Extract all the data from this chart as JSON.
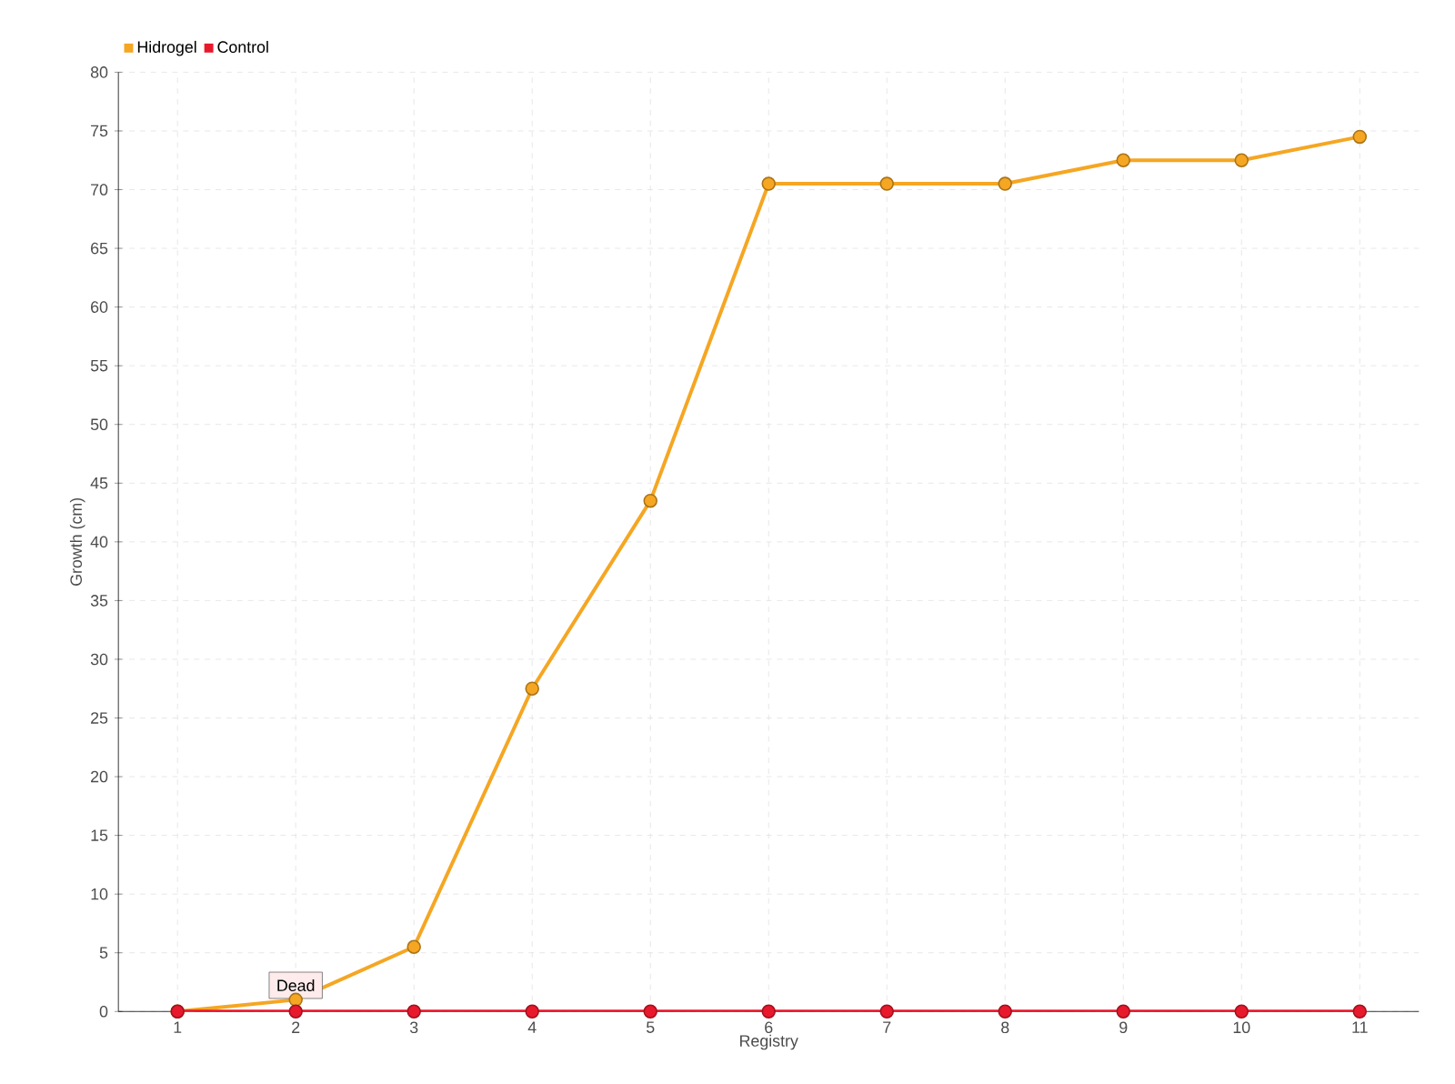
{
  "chart_data": {
    "type": "line",
    "xlabel": "Registry",
    "ylabel": "Growth (cm)",
    "categories": [
      "1",
      "2",
      "3",
      "4",
      "5",
      "6",
      "7",
      "8",
      "9",
      "10",
      "11"
    ],
    "series": [
      {
        "name": "Hidrogel",
        "color": "#f5a623",
        "values": [
          0,
          1,
          5.5,
          27.5,
          43.5,
          70.5,
          70.5,
          70.5,
          72.5,
          72.5,
          74.5
        ]
      },
      {
        "name": "Control",
        "color": "#e8192c",
        "values": [
          0,
          0,
          0,
          0,
          0,
          0,
          0,
          0,
          0,
          0,
          0
        ]
      }
    ],
    "ylim": [
      0,
      80
    ],
    "yticks": [
      0,
      5,
      10,
      15,
      20,
      25,
      30,
      35,
      40,
      45,
      50,
      55,
      60,
      65,
      70,
      75,
      80
    ],
    "grid": true,
    "legend": "top left",
    "marker": "circle",
    "line_style": "solid",
    "annotations": [
      {
        "text": "Dead",
        "x": "2",
        "y": 0
      }
    ]
  }
}
